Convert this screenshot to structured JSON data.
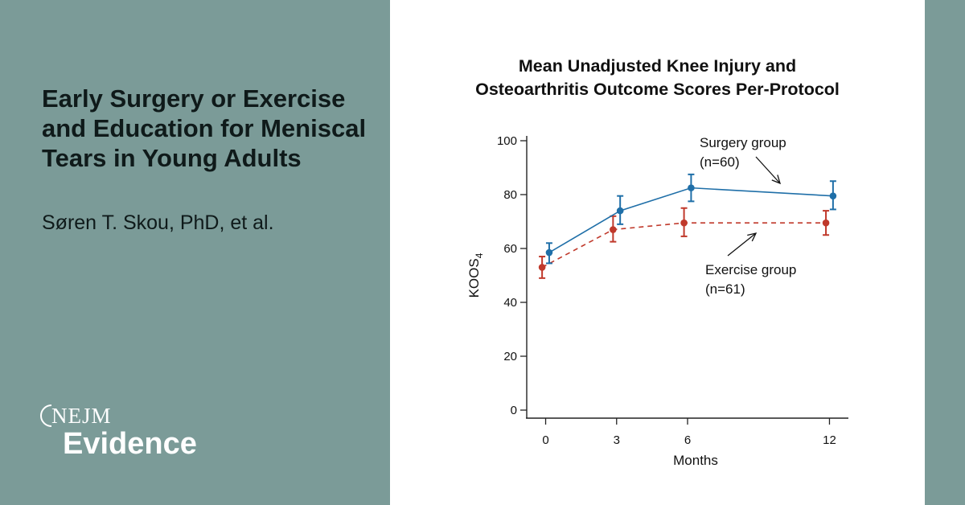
{
  "article": {
    "title": "Early Surgery or Exercise and Education for Meniscal Tears in Young Adults",
    "authors": "Søren T. Skou, PhD, et al."
  },
  "brand": {
    "top": "NEJM",
    "bottom": "Evidence"
  },
  "colors": {
    "background": "#7b9b98",
    "card": "#ffffff",
    "surgery": "#1f6fa8",
    "exercise": "#c0392b",
    "text": "#111111"
  },
  "chart_data": {
    "type": "line",
    "title_lines": [
      "Mean Unadjusted Knee Injury and",
      "Osteoarthritis Outcome Scores Per-Protocol"
    ],
    "xlabel": "Months",
    "ylabel": "KOOS",
    "ylabel_subscript": "4",
    "x": [
      0,
      3,
      6,
      12
    ],
    "x_ticks": [
      0,
      3,
      6,
      12
    ],
    "xlim": [
      -0.8,
      12.8
    ],
    "ylim": [
      0,
      100
    ],
    "y_ticks": [
      0,
      20,
      40,
      60,
      80,
      100
    ],
    "grid": false,
    "series": [
      {
        "name": "Surgery group",
        "n_label": "(n=60)",
        "style": "solid",
        "x_offset": 0.15,
        "values": [
          58.5,
          74,
          82.5,
          79.5
        ],
        "error_low": [
          54.5,
          69,
          77.5,
          74.5
        ],
        "error_high": [
          62,
          79.5,
          87.5,
          85
        ]
      },
      {
        "name": "Exercise group",
        "n_label": "(n=61)",
        "style": "dashed",
        "x_offset": -0.15,
        "values": [
          53,
          67,
          69.5,
          69.5
        ],
        "error_low": [
          49,
          62.5,
          64.5,
          65
        ],
        "error_high": [
          57,
          72,
          75,
          74
        ]
      }
    ]
  }
}
